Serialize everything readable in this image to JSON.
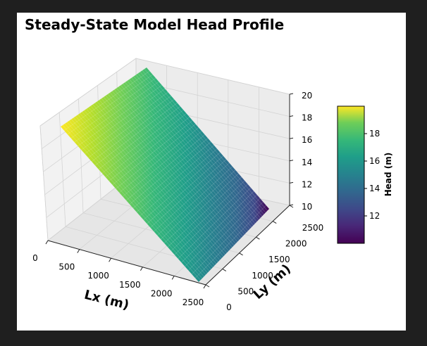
{
  "chart_data": {
    "type": "surface",
    "title": "Steady-State Model Head Profile",
    "xlabel": "Lx (m)",
    "ylabel": "Ly (m)",
    "zlabel": "",
    "xlim": [
      0,
      2500
    ],
    "ylim": [
      0,
      2500
    ],
    "zlim": [
      10,
      20
    ],
    "x_ticks": [
      0,
      500,
      1000,
      1500,
      2000,
      2500
    ],
    "y_ticks": [
      0,
      500,
      1000,
      1500,
      2000,
      2500
    ],
    "z_ticks": [
      10,
      12,
      14,
      16,
      18,
      20
    ],
    "surface": {
      "description": "planar head surface varying linearly along Lx, constant along Ly",
      "x": [
        0,
        2500
      ],
      "head_at_x": [
        20,
        10
      ],
      "colormap": "viridis"
    },
    "grid": true,
    "colorbar": {
      "label": "Head (m)",
      "ticks": [
        12,
        14,
        16,
        18
      ],
      "range": [
        10,
        20
      ],
      "colormap": "viridis"
    }
  }
}
